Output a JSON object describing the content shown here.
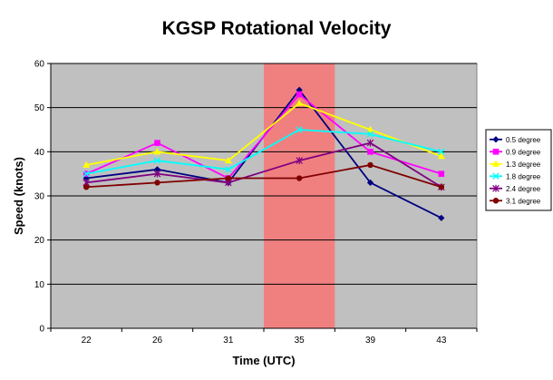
{
  "chart_data": {
    "type": "line",
    "title": "KGSP Rotational Velocity",
    "xlabel": "Time (UTC)",
    "ylabel": "Speed (knots)",
    "categories": [
      "22",
      "26",
      "31",
      "35",
      "39",
      "43"
    ],
    "ylim": [
      0,
      60
    ],
    "yticks": [
      0,
      10,
      20,
      30,
      40,
      50,
      60
    ],
    "grid": true,
    "plot_background": "#c0c0c0",
    "highlight": {
      "category": "35",
      "color": "#f08080"
    },
    "legend": {
      "position": "right"
    },
    "series": [
      {
        "name": "0.5 degree",
        "color": "#000080",
        "marker": "diamond",
        "values": [
          34,
          36,
          33,
          54,
          33,
          25
        ]
      },
      {
        "name": "0.9 degree",
        "color": "#ff00ff",
        "marker": "square",
        "values": [
          35,
          42,
          34,
          53,
          40,
          35
        ]
      },
      {
        "name": "1.3 degree",
        "color": "#ffff00",
        "marker": "triangle",
        "values": [
          37,
          40,
          38,
          51,
          45,
          39
        ]
      },
      {
        "name": "1.8 degree",
        "color": "#00ffff",
        "marker": "x",
        "values": [
          35,
          38,
          36,
          45,
          44,
          40
        ]
      },
      {
        "name": "2.4 degree",
        "color": "#800080",
        "marker": "star",
        "values": [
          33,
          35,
          33,
          38,
          42,
          32
        ]
      },
      {
        "name": "3.1 degree",
        "color": "#800000",
        "marker": "circle",
        "values": [
          32,
          33,
          34,
          34,
          37,
          32
        ]
      }
    ]
  }
}
